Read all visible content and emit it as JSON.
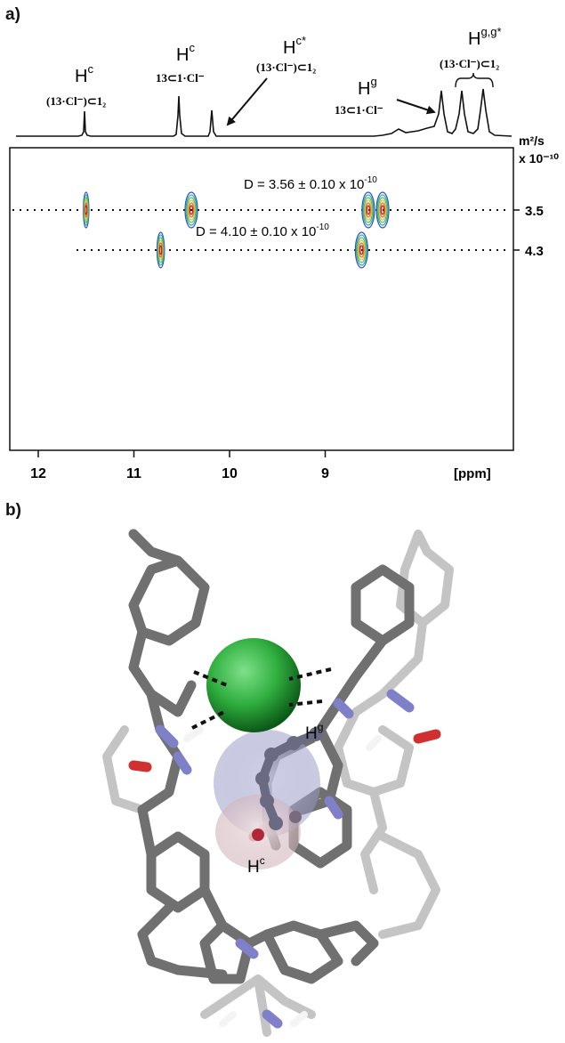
{
  "panel_a_label": "a)",
  "panel_b_label": "b)",
  "peaks": {
    "hc_left": {
      "main": "H",
      "sup": "c",
      "sub": "(13·Cl⁻)⊂1₂"
    },
    "hc_mid": {
      "main": "H",
      "sup": "c",
      "sub": "13⊂1·Cl⁻"
    },
    "hc_star": {
      "main": "H",
      "sup": "c*",
      "sub": "(13·Cl⁻)⊂1₂"
    },
    "hg": {
      "main": "H",
      "sup": "g",
      "sub": "13⊂1·Cl⁻"
    },
    "hg_star": {
      "main": "H",
      "sup": "g,g*",
      "sub": "(13·Cl⁻)⊂1₂"
    }
  },
  "right_axis": {
    "unit": "m²/s",
    "scale": "x 10⁻¹⁰",
    "ticks": [
      "3.5",
      "4.3"
    ]
  },
  "bottom_axis": {
    "ticks": [
      "12",
      "11",
      "10",
      "9"
    ],
    "unit": "[ppm]"
  },
  "annotations": {
    "d1": {
      "text": "D = 3.56 ± 0.10 x 10",
      "exp": "-10"
    },
    "d2": {
      "text": "D = 4.10 ± 0.10 x 10",
      "exp": "-10"
    }
  },
  "chart_data": {
    "type": "scatter",
    "xlabel": "[ppm]",
    "ylabel": "m²/s x 10⁻¹⁰",
    "xlim": [
      12.1,
      8.05
    ],
    "x_ticks": [
      12,
      11,
      10,
      9
    ],
    "y_ticks": [
      3.5,
      4.3
    ],
    "grid": false,
    "series": [
      {
        "name": "(13·Cl⁻)⊂1₂",
        "x": [
          11.5,
          10.4,
          8.55,
          8.4
        ],
        "y": [
          3.5,
          3.5,
          3.5,
          3.5
        ]
      },
      {
        "name": "13⊂1·Cl⁻",
        "x": [
          10.72,
          8.62
        ],
        "y": [
          4.3,
          4.3
        ]
      }
    ]
  },
  "molecule_labels": {
    "hg": {
      "main": "H",
      "sup": "g"
    },
    "hc": {
      "main": "H",
      "sup": "c"
    }
  }
}
